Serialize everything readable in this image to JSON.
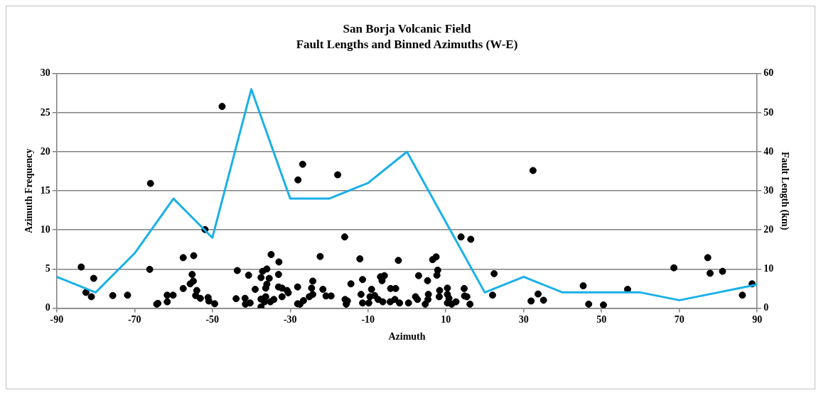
{
  "chart_data": {
    "type": "line",
    "title": "San Borja Volcanic Field",
    "subtitle": "Fault Lengths and Binned Azimuths (W-E)",
    "xlabel": "Azimuth",
    "ylabel": "Azimuth Frequency",
    "y2label": "Fault Length (km)",
    "xlim": [
      -90,
      90
    ],
    "xticks": [
      -90,
      -70,
      -50,
      -30,
      -10,
      10,
      30,
      50,
      70,
      90
    ],
    "ylim": [
      0,
      30
    ],
    "yticks": [
      0,
      5,
      10,
      15,
      20,
      25,
      30
    ],
    "y2lim": [
      0,
      60
    ],
    "y2ticks": [
      0,
      10,
      20,
      30,
      40,
      50,
      60
    ],
    "grid": "y",
    "legend": false,
    "series": [
      {
        "type": "line",
        "color": "#1ab0e8",
        "marker": "none",
        "line_style": "solid",
        "x": [
          -90,
          -80,
          -70,
          -60,
          -50,
          -40,
          -30,
          -20,
          -10,
          0,
          10,
          20,
          30,
          40,
          50,
          60,
          70,
          80,
          90
        ],
        "values": [
          4,
          2,
          7,
          14,
          9,
          28,
          14,
          14,
          16,
          20,
          11,
          2,
          4,
          2,
          2,
          2,
          1,
          2,
          3
        ]
      },
      {
        "type": "scatter",
        "axis": "y2",
        "color": "#000000",
        "marker": "circle",
        "x": [
          -83.7,
          -82.5,
          -81.1,
          -80.5,
          -75.6,
          -71.8,
          -65.9,
          -66.1,
          -64.3,
          -64.0,
          -61.6,
          -61.6,
          -60.1,
          -57.5,
          -54.8,
          -57.5,
          -55.2,
          -54.9,
          -55.7,
          -54.0,
          -54.3,
          -53.1,
          -51.9,
          -51.1,
          -50.9,
          -49.4,
          -47.5,
          -43.6,
          -43.9,
          -41.6,
          -41.5,
          -40.3,
          -40.7,
          -39.0,
          -37.5,
          -37.5,
          -37.5,
          -37.1,
          -36.0,
          -35.4,
          -36.0,
          -36.3,
          -36.3,
          -36.6,
          -35.1,
          -34.2,
          -34.9,
          -32.9,
          -33.0,
          -33.0,
          -32.1,
          -32.1,
          -30.8,
          -30.5,
          -28.1,
          -28.0,
          -26.8,
          -28.1,
          -27.5,
          -26.6,
          -25.1,
          -24.2,
          -24.5,
          -24.2,
          -22.3,
          -21.6,
          -20.8,
          -19.5,
          -17.8,
          -16.0,
          -15.9,
          -15.3,
          -15.6,
          -14.4,
          -12.1,
          -11.4,
          -11.8,
          -11.4,
          -9.8,
          -9.1,
          -9.5,
          -8.3,
          -7.4,
          -6.2,
          -6.8,
          -5.8,
          -6.4,
          -4.2,
          -2.9,
          -4.3,
          -3.1,
          -1.9,
          -2.2,
          0.4,
          2.2,
          2.7,
          3.0,
          5.3,
          5.5,
          5.4,
          4.7,
          6.6,
          7.5,
          7.9,
          7.7,
          8.4,
          8.3,
          10.4,
          10.4,
          10.8,
          10.4,
          11.5,
          12.6,
          13.9,
          16.4,
          14.7,
          15.4,
          14.8,
          16.2,
          22.4,
          22.0,
          32.4,
          31.9,
          33.7,
          35.1,
          45.3,
          46.7,
          50.5,
          56.7,
          68.6,
          77.3,
          77.9,
          81.1,
          86.2,
          88.7
        ],
        "values": [
          10.5,
          4.0,
          2.9,
          7.6,
          3.2,
          3.3,
          31.9,
          9.9,
          1.0,
          1.2,
          1.6,
          3.3,
          3.3,
          12.9,
          13.4,
          5.0,
          8.6,
          6.9,
          6.2,
          4.5,
          3.2,
          2.5,
          20.1,
          2.7,
          1.8,
          1.1,
          51.6,
          9.6,
          2.4,
          2.5,
          1.0,
          1.3,
          8.4,
          4.8,
          0.3,
          2.3,
          7.8,
          9.4,
          10.0,
          7.6,
          6.1,
          5.1,
          2.9,
          1.6,
          1.6,
          2.2,
          13.7,
          11.8,
          8.6,
          5.4,
          2.9,
          5.1,
          4.5,
          3.9,
          5.4,
          32.8,
          36.8,
          1.1,
          1.0,
          1.9,
          2.9,
          3.5,
          5.1,
          6.9,
          13.2,
          4.8,
          3.1,
          3.1,
          34.1,
          18.2,
          2.2,
          1.8,
          1.0,
          6.2,
          12.6,
          7.3,
          3.5,
          1.3,
          1.3,
          4.8,
          2.9,
          3.2,
          2.2,
          1.6,
          8.0,
          8.3,
          7.0,
          5.0,
          5.0,
          1.6,
          2.2,
          1.3,
          12.2,
          1.3,
          2.9,
          2.2,
          8.3,
          7.0,
          3.5,
          2.2,
          1.0,
          12.4,
          13.1,
          9.7,
          8.4,
          4.5,
          2.9,
          5.1,
          3.5,
          2.5,
          1.3,
          1.0,
          1.6,
          18.2,
          17.6,
          5.0,
          2.9,
          3.1,
          1.0,
          8.8,
          3.3,
          35.2,
          1.8,
          3.6,
          2.0,
          5.7,
          1.0,
          0.8,
          4.8,
          10.3,
          12.9,
          8.9,
          9.4,
          3.3,
          6.2
        ]
      }
    ]
  }
}
